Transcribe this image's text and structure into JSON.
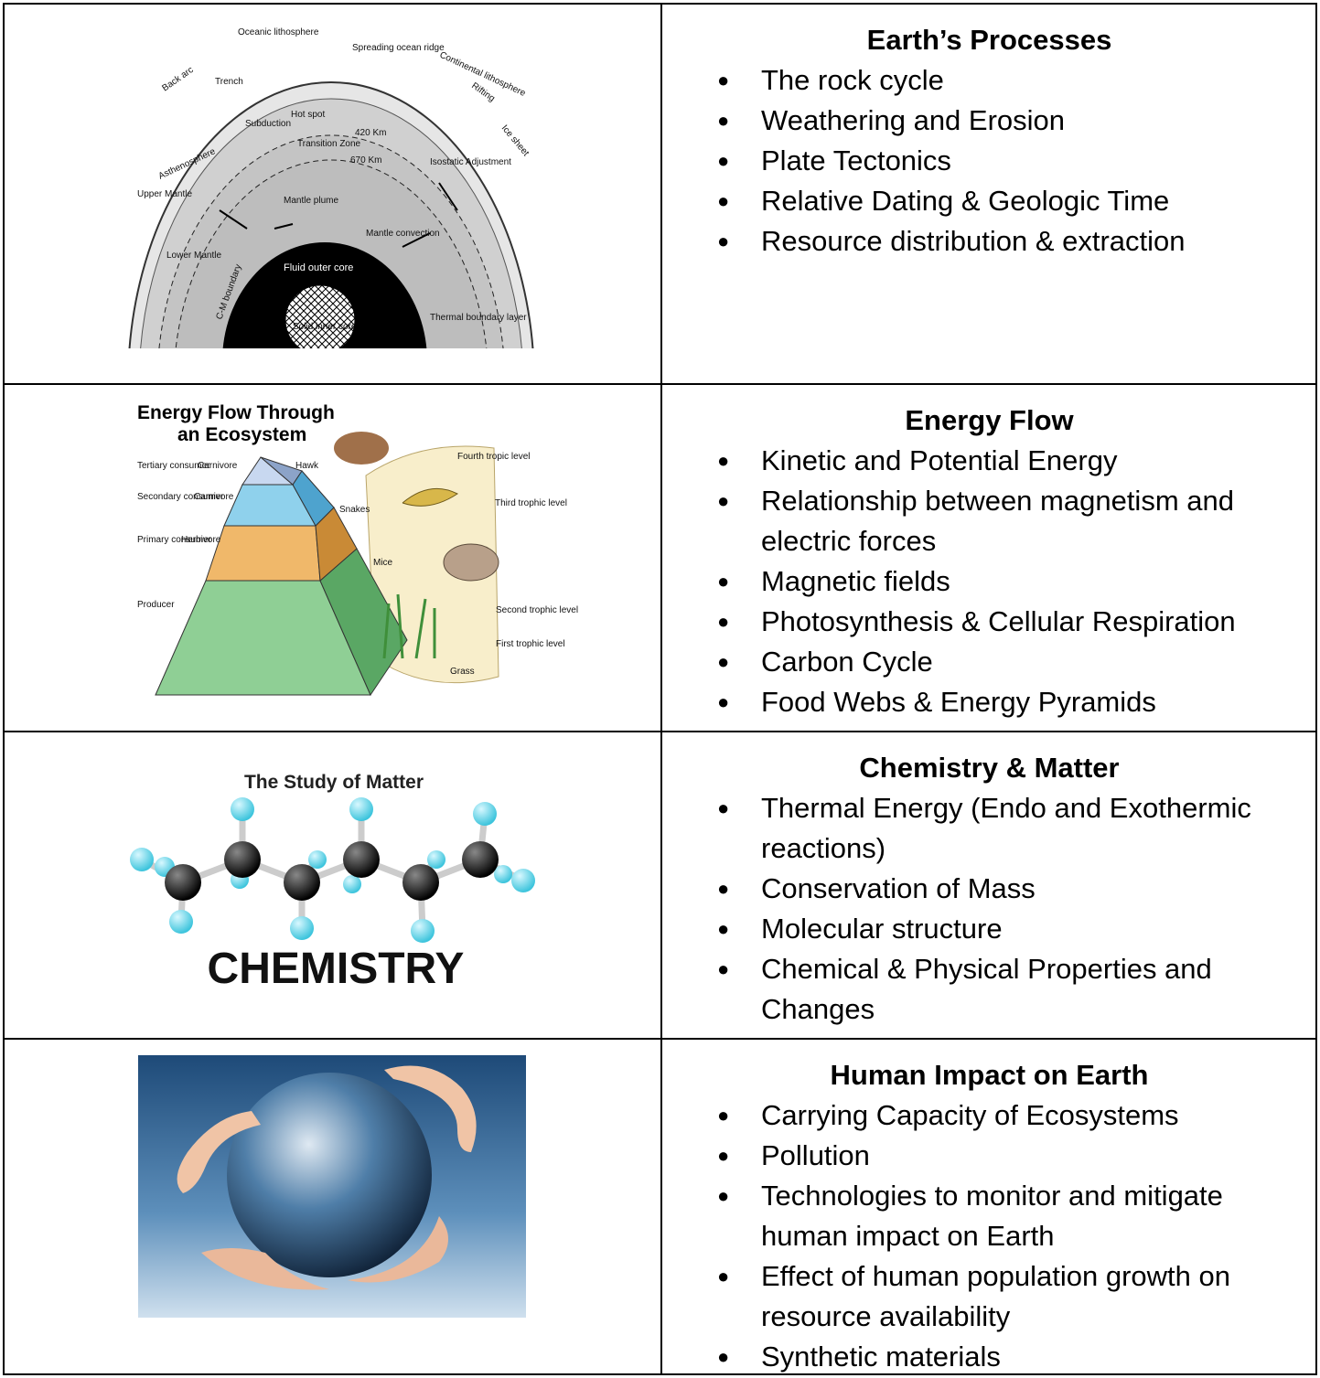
{
  "rows": [
    {
      "title": "Earth’s Processes",
      "items": [
        "The rock cycle",
        "Weathering and Erosion",
        "Plate Tectonics",
        "Relative Dating & Geologic Time",
        "Resource distribution & extraction"
      ],
      "image": {
        "labels": [
          "Oceanic lithosphere",
          "Spreading ocean ridge",
          "Continental lithosphere",
          "Back arc",
          "Trench",
          "Rifting",
          "Ice sheet",
          "Hot spot",
          "Subduction",
          "420 Km",
          "Transition Zone",
          "670 Km",
          "Isostatic Adjustment",
          "Asthenosphere",
          "Upper Mantle",
          "Mantle plume",
          "Mantle convection",
          "Lower Mantle",
          "Fluid outer core",
          "Solid inner core",
          "Thermal boundary layer",
          "C-M boundary"
        ]
      }
    },
    {
      "title": "Energy Flow",
      "items": [
        "Kinetic and Potential Energy",
        "Relationship between magnetism and electric forces",
        "Magnetic fields",
        "Photosynthesis & Cellular Respiration",
        "Carbon Cycle",
        "Food Webs & Energy Pyramids"
      ],
      "image": {
        "labels": [
          "Energy Flow Through",
          "an Ecosystem",
          "Tertiary consumer",
          "Carnivore",
          "Secondary consumer",
          "Carnivore",
          "Primary consumer",
          "Herbivore",
          "Producer",
          "Hawk",
          "Snakes",
          "Mice",
          "Grass",
          "Fourth tropic level",
          "Third trophic level",
          "Second trophic level",
          "First trophic level"
        ]
      }
    },
    {
      "title": "Chemistry & Matter",
      "items": [
        "Thermal Energy (Endo and Exothermic reactions)",
        "Conservation of Mass",
        "Molecular structure",
        "Chemical & Physical Properties and Changes"
      ],
      "image": {
        "labels": [
          "The Study of Matter",
          "CHEMISTRY"
        ]
      }
    },
    {
      "title": "Human Impact on Earth",
      "items": [
        "Carrying Capacity of Ecosystems",
        "Pollution",
        "Technologies to monitor and mitigate human impact on Earth",
        "Effect of human population growth on resource availability",
        "Synthetic materials"
      ]
    }
  ]
}
